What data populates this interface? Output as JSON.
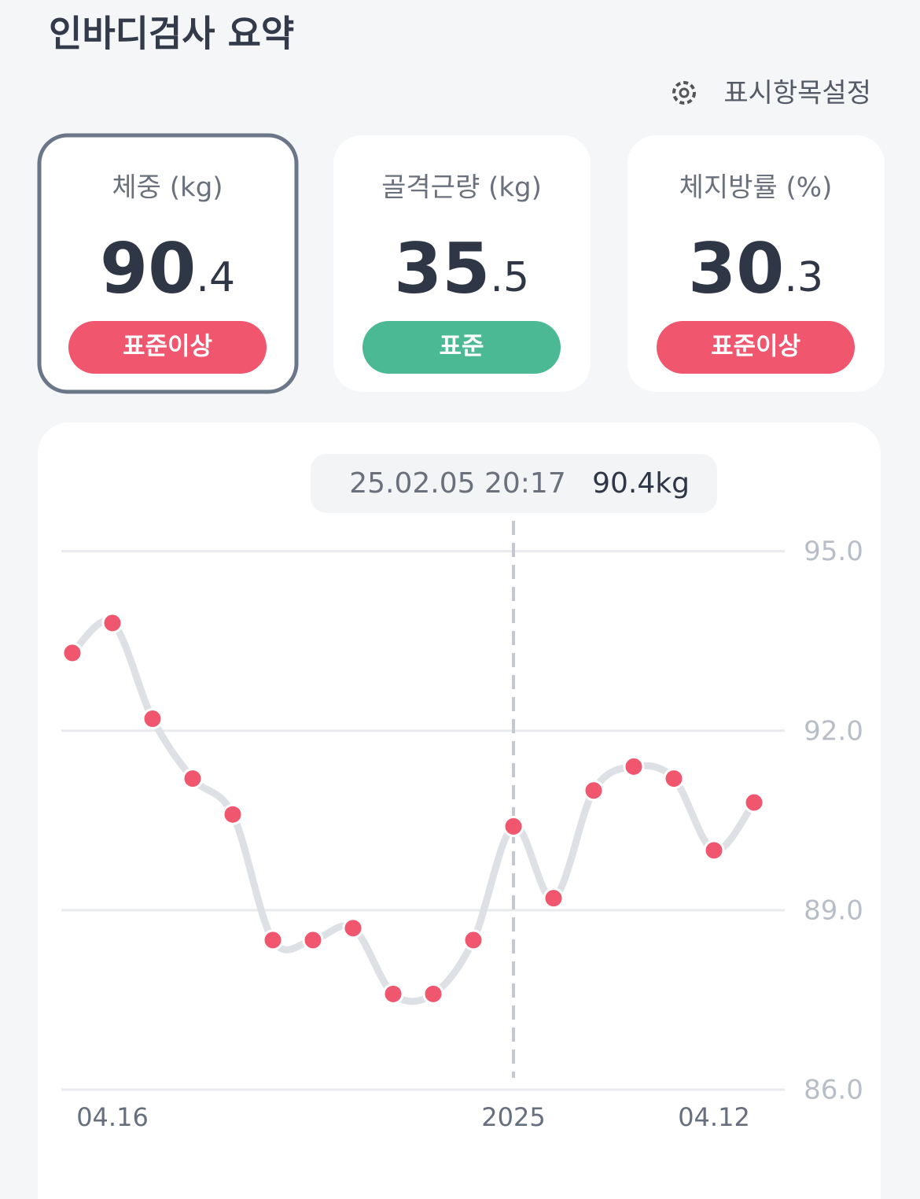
{
  "header": {
    "title": "인바디검사 요약",
    "settings": "표시항목설정"
  },
  "cards": [
    {
      "label": "체중 (kg)",
      "integer": "90",
      "decimal": ".4",
      "status": "표준이상",
      "status_color": "#f0566e"
    },
    {
      "label": "골격근량 (kg)",
      "integer": "35",
      "decimal": ".5",
      "status": "표준",
      "status_color": "#4bb994"
    },
    {
      "label": "체지방률 (%)",
      "integer": "30",
      "decimal": ".3",
      "status": "표준이상",
      "status_color": "#f0566e"
    }
  ],
  "chart_data": {
    "type": "line",
    "tooltip": {
      "date": "25.02.05 20:17",
      "value_label": "90.4kg"
    },
    "selected": 11,
    "categories": [
      null,
      "04.16",
      null,
      null,
      null,
      null,
      null,
      null,
      null,
      null,
      null,
      "2025",
      null,
      null,
      null,
      null,
      "04.12",
      null
    ],
    "series": [
      {
        "name": "체중",
        "color": "#f0566e",
        "line_color": "#dde0e5",
        "values": [
          93.3,
          93.8,
          92.2,
          91.2,
          90.6,
          88.5,
          88.5,
          88.7,
          87.6,
          87.6,
          88.5,
          90.4,
          89.2,
          91.0,
          91.4,
          91.2,
          90.0,
          90.8
        ]
      }
    ],
    "ylim": [
      86,
      95.6
    ],
    "yticks": [
      {
        "value": 95,
        "label": "95.0"
      },
      {
        "value": 92,
        "label": "92.0"
      },
      {
        "value": 89,
        "label": "89.0"
      },
      {
        "value": 86,
        "label": "86.0"
      }
    ],
    "grid": true
  }
}
